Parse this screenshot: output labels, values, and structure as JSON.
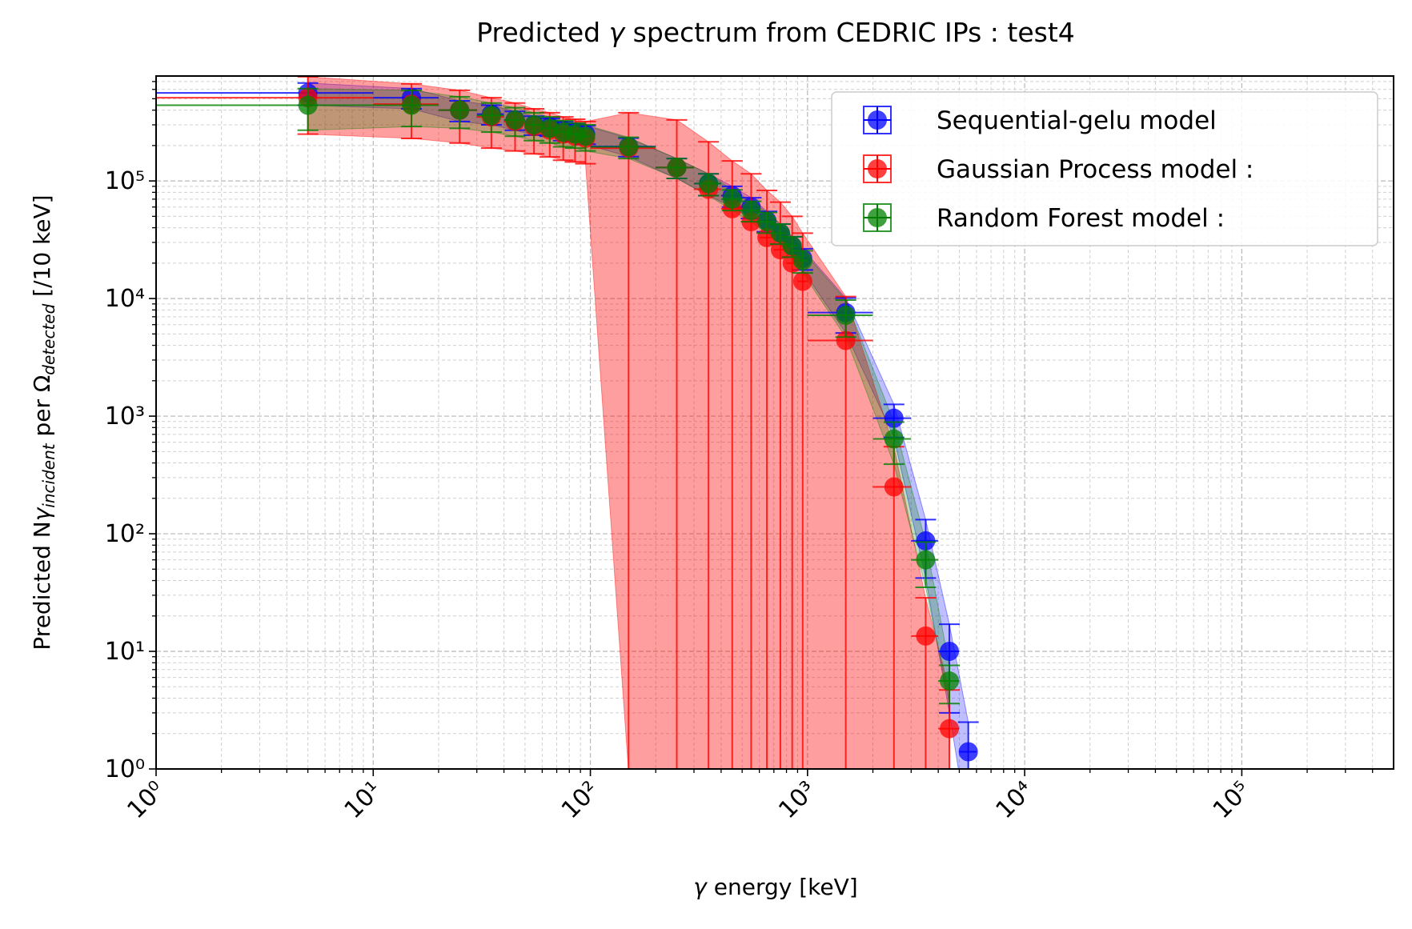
{
  "chart_data": {
    "type": "scatter",
    "title": [
      "Predicted ",
      "γ",
      " spectrum from CEDRIC IPs : test4"
    ],
    "xlabel": [
      "γ",
      " energy [keV]"
    ],
    "ylabel": [
      "Predicted N",
      "γ",
      "incident",
      " per Ω",
      "detected",
      " [/10 keV]"
    ],
    "log_x": true,
    "log_y": true,
    "grid": true,
    "legend": "upper right",
    "xlim": [
      1,
      500000
    ],
    "ylim": [
      1,
      780000
    ],
    "xticks": [
      {
        "value": 1,
        "label": "10⁰"
      },
      {
        "value": 10,
        "label": "10¹"
      },
      {
        "value": 100,
        "label": "10²"
      },
      {
        "value": 1000,
        "label": "10³"
      },
      {
        "value": 10000,
        "label": "10⁴"
      },
      {
        "value": 100000,
        "label": "10⁵"
      }
    ],
    "yticks": [
      {
        "value": 1,
        "label": "10⁰"
      },
      {
        "value": 10,
        "label": "10¹"
      },
      {
        "value": 100,
        "label": "10²"
      },
      {
        "value": 1000,
        "label": "10³"
      },
      {
        "value": 10000,
        "label": "10⁴"
      },
      {
        "value": 100000,
        "label": "10⁵"
      }
    ],
    "xminorticks": [
      2,
      3,
      4,
      5,
      6,
      7,
      8,
      9,
      20,
      30,
      40,
      50,
      60,
      70,
      80,
      90,
      200,
      300,
      400,
      500,
      600,
      700,
      800,
      900,
      2000,
      3000,
      4000,
      5000,
      6000,
      7000,
      8000,
      9000,
      20000,
      30000,
      40000,
      50000,
      60000,
      70000,
      80000,
      90000,
      200000,
      300000,
      400000
    ],
    "yminorticks": [
      2,
      3,
      4,
      5,
      6,
      7,
      8,
      9,
      20,
      30,
      40,
      50,
      60,
      70,
      80,
      90,
      200,
      300,
      400,
      500,
      600,
      700,
      800,
      900,
      2000,
      3000,
      4000,
      5000,
      6000,
      7000,
      8000,
      9000,
      20000,
      30000,
      40000,
      50000,
      60000,
      70000,
      80000,
      90000,
      200000,
      300000,
      400000,
      500000,
      600000,
      700000
    ],
    "x": [
      5,
      15,
      25,
      35,
      45,
      55,
      65,
      75,
      85,
      95,
      150,
      250,
      350,
      450,
      550,
      650,
      750,
      850,
      950,
      1500,
      2500,
      3500,
      4500,
      5500
    ],
    "xerr": [
      5,
      5,
      5,
      5,
      5,
      5,
      5,
      5,
      5,
      5,
      50,
      50,
      50,
      50,
      50,
      50,
      50,
      50,
      50,
      500,
      500,
      500,
      500,
      500
    ],
    "series": [
      {
        "name": "Sequential-gelu model",
        "color": "#0000ff",
        "values": [
          560000,
          510000,
          400000,
          370000,
          330000,
          300000,
          290000,
          270000,
          260000,
          250000,
          196000,
          130000,
          95000,
          75000,
          60000,
          46000,
          36000,
          28000,
          22000,
          7600,
          960,
          87,
          10,
          1.4
        ],
        "yerr": [
          120000,
          100000,
          80000,
          70000,
          60000,
          55000,
          50000,
          50000,
          45000,
          45000,
          35000,
          25000,
          20000,
          15000,
          12000,
          9000,
          7000,
          5500,
          4500,
          2500,
          300,
          45,
          7,
          1.1
        ]
      },
      {
        "name": "Gaussian Process model :",
        "color": "#ff0000",
        "values": [
          510000,
          450000,
          400000,
          350000,
          320000,
          290000,
          270000,
          250000,
          240000,
          230000,
          190000,
          130000,
          85000,
          58000,
          45000,
          33000,
          26000,
          20000,
          14000,
          4400,
          250,
          13.5,
          2.2,
          null
        ],
        "yerr": [
          260000,
          220000,
          190000,
          160000,
          140000,
          120000,
          110000,
          100000,
          95000,
          90000,
          190000,
          200000,
          130000,
          90000,
          70000,
          50000,
          40000,
          30000,
          22000,
          6000,
          300,
          15,
          2.5,
          null
        ]
      },
      {
        "name": "Random Forest model :",
        "color": "#008000",
        "values": [
          440000,
          440000,
          400000,
          360000,
          330000,
          300000,
          280000,
          260000,
          250000,
          240000,
          195000,
          130000,
          95000,
          70000,
          56000,
          45000,
          36000,
          28000,
          21000,
          7200,
          640,
          60,
          5.6,
          null
        ],
        "yerr": [
          170000,
          150000,
          120000,
          100000,
          90000,
          80000,
          70000,
          65000,
          60000,
          60000,
          40000,
          25000,
          20000,
          14000,
          11000,
          9000,
          7000,
          5500,
          4500,
          2500,
          250,
          25,
          2,
          null
        ]
      }
    ]
  }
}
